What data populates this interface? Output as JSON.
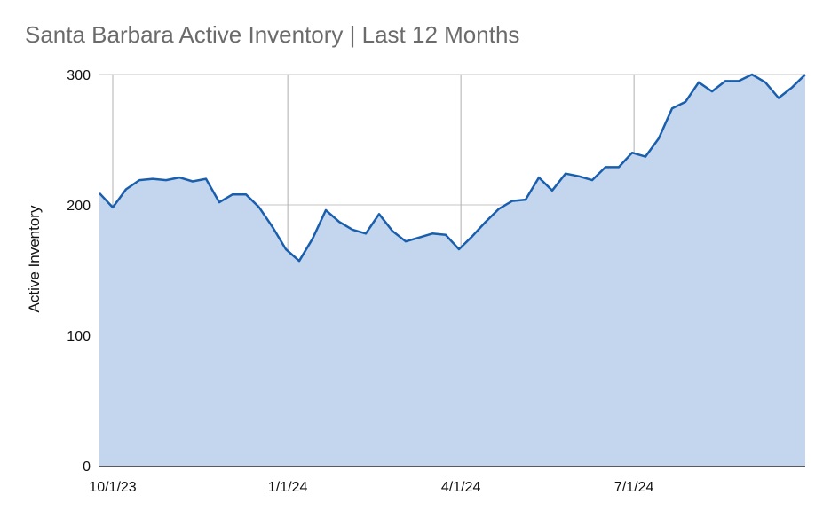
{
  "chart_data": {
    "type": "area",
    "title": "Santa Barbara Active Inventory | Last 12 Months",
    "xlabel": "",
    "ylabel": "Active Inventory",
    "ylim": [
      0,
      300
    ],
    "yticks": [
      "0",
      "100",
      "200",
      "300"
    ],
    "xticks": [
      "10/1/23",
      "1/1/24",
      "4/1/24",
      "7/1/24"
    ],
    "xlim": [
      "2023-09-24",
      "2024-09-29"
    ],
    "grid": true,
    "x": [
      "2023-09-24",
      "2023-10-01",
      "2023-10-08",
      "2023-10-15",
      "2023-10-22",
      "2023-10-29",
      "2023-11-05",
      "2023-11-12",
      "2023-11-19",
      "2023-11-26",
      "2023-12-03",
      "2023-12-10",
      "2023-12-17",
      "2023-12-24",
      "2023-12-31",
      "2024-01-07",
      "2024-01-14",
      "2024-01-21",
      "2024-01-28",
      "2024-02-04",
      "2024-02-11",
      "2024-02-18",
      "2024-02-25",
      "2024-03-03",
      "2024-03-10",
      "2024-03-17",
      "2024-03-24",
      "2024-03-31",
      "2024-04-07",
      "2024-04-14",
      "2024-04-21",
      "2024-04-28",
      "2024-05-05",
      "2024-05-12",
      "2024-05-19",
      "2024-05-26",
      "2024-06-02",
      "2024-06-09",
      "2024-06-16",
      "2024-06-23",
      "2024-06-30",
      "2024-07-07",
      "2024-07-14",
      "2024-07-21",
      "2024-07-28",
      "2024-08-04",
      "2024-08-11",
      "2024-08-18",
      "2024-08-25",
      "2024-09-01",
      "2024-09-08",
      "2024-09-15",
      "2024-09-22",
      "2024-09-29"
    ],
    "series": [
      {
        "values": [
          209,
          198,
          212,
          219,
          220,
          219,
          221,
          218,
          220,
          202,
          208,
          208,
          198,
          183,
          166,
          157,
          174,
          196,
          187,
          181,
          178,
          193,
          180,
          172,
          175,
          178,
          177,
          166,
          176,
          187,
          197,
          203,
          204,
          221,
          211,
          224,
          222,
          219,
          229,
          229,
          240,
          237,
          251,
          274,
          279,
          294,
          287,
          295,
          295,
          300,
          294,
          282,
          290,
          300
        ],
        "color": "#1a5fad",
        "fill": "#c3d6ee"
      }
    ]
  }
}
